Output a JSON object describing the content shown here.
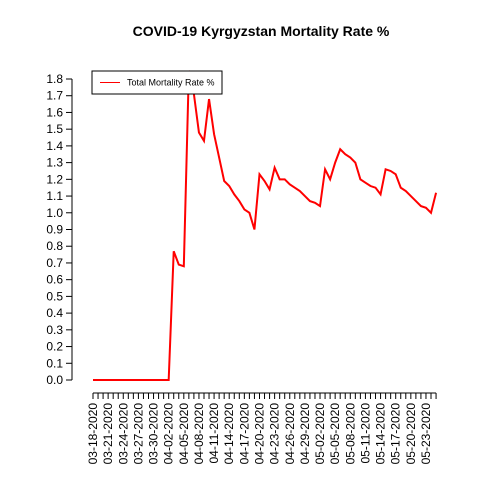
{
  "chart_data": {
    "type": "line",
    "title": "COVID-19 Kyrgyzstan Mortality Rate %",
    "categories": [
      "03-18-2020",
      null,
      null,
      "03-21-2020",
      null,
      null,
      "03-24-2020",
      null,
      null,
      "03-27-2020",
      null,
      null,
      "03-30-2020",
      null,
      null,
      "04-02-2020",
      null,
      null,
      "04-05-2020",
      null,
      null,
      "04-08-2020",
      null,
      null,
      "04-11-2020",
      null,
      null,
      "04-14-2020",
      null,
      null,
      "04-17-2020",
      null,
      null,
      "04-20-2020",
      null,
      null,
      "04-23-2020",
      null,
      null,
      "04-26-2020",
      null,
      null,
      "04-29-2020",
      null,
      null,
      "05-02-2020",
      null,
      null,
      "05-05-2020",
      null,
      null,
      "05-08-2020",
      null,
      null,
      "05-11-2020",
      null,
      null,
      "05-14-2020",
      null,
      null,
      "05-17-2020",
      null,
      null,
      "05-20-2020",
      null,
      null,
      "05-23-2020",
      null,
      null
    ],
    "series": [
      {
        "name": "Total Mortality Rate %",
        "color": "#ff0000",
        "values": [
          0,
          0,
          0,
          0,
          0,
          0,
          0,
          0,
          0,
          0,
          0,
          0,
          0,
          0,
          0,
          0,
          0.77,
          0.69,
          0.68,
          1.85,
          1.71,
          1.48,
          1.43,
          1.68,
          1.47,
          1.33,
          1.19,
          1.16,
          1.11,
          1.07,
          1.02,
          1.0,
          0.9,
          1.23,
          1.19,
          1.14,
          1.27,
          1.2,
          1.2,
          1.17,
          1.15,
          1.13,
          1.1,
          1.07,
          1.06,
          1.04,
          1.26,
          1.2,
          1.3,
          1.38,
          1.35,
          1.33,
          1.3,
          1.2,
          1.18,
          1.16,
          1.15,
          1.11,
          1.26,
          1.25,
          1.23,
          1.15,
          1.13,
          1.1,
          1.07,
          1.04,
          1.03,
          1.0,
          1.12
        ]
      }
    ],
    "ylim": [
      0,
      1.8
    ],
    "yticks": [
      {
        "value": 0,
        "label": "0.0"
      },
      0.1,
      0.2,
      0.3,
      0.4,
      0.5,
      0.6,
      0.7,
      0.8,
      0.9,
      {
        "value": 1,
        "label": "1.0"
      },
      1.1,
      1.2,
      1.3,
      1.4,
      1.5,
      1.6,
      1.7,
      1.8
    ],
    "legend": "top-left"
  }
}
